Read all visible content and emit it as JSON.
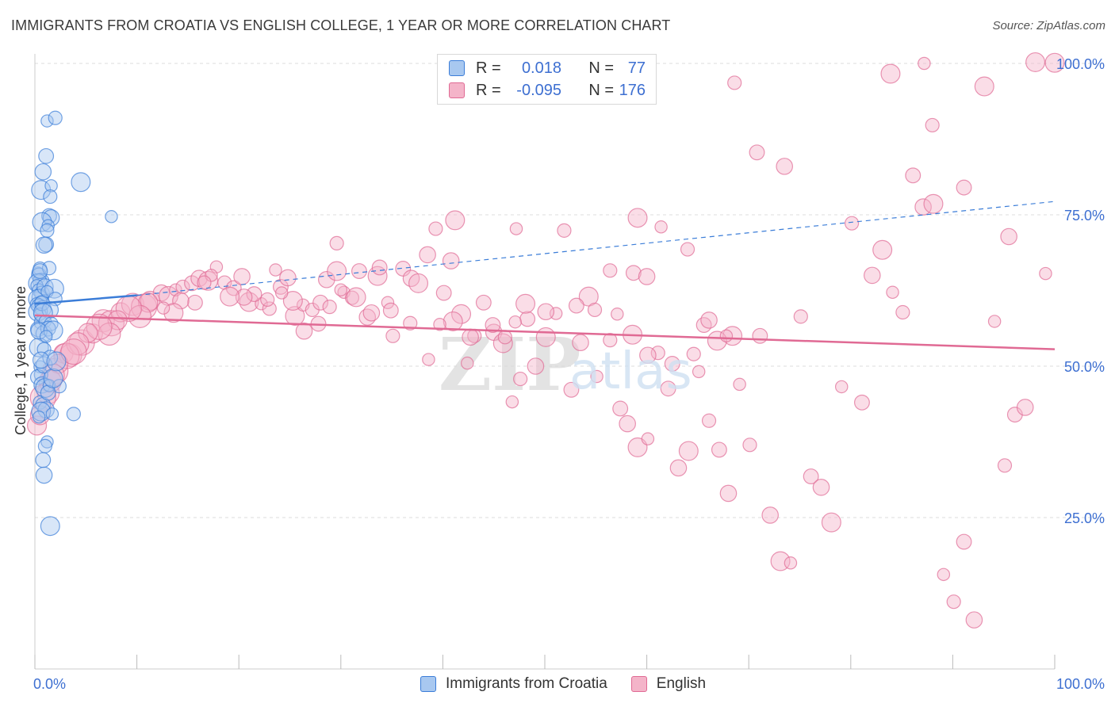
{
  "title": "IMMIGRANTS FROM CROATIA VS ENGLISH COLLEGE, 1 YEAR OR MORE CORRELATION CHART",
  "source": "Source: ZipAtlas.com",
  "watermark": "ZIPatlas",
  "colors": {
    "blue": "#3b7dd8",
    "blue_fill": "#a8c8f0",
    "pink": "#e06a94",
    "pink_fill": "#f4b4c9",
    "axis_text": "#3d6fd1",
    "grid": "#dddddd"
  },
  "legend_top": [
    {
      "series": "blue",
      "r_label": "R =",
      "r_value": "0.018",
      "n_label": "N =",
      "n_value": "77"
    },
    {
      "series": "pink",
      "r_label": "R =",
      "r_value": "-0.095",
      "n_label": "N =",
      "n_value": "176"
    }
  ],
  "legend_bottom": [
    {
      "series": "blue",
      "label": "Immigrants from Croatia"
    },
    {
      "series": "pink",
      "label": "English"
    }
  ],
  "chart_data": {
    "type": "scatter",
    "title": "IMMIGRANTS FROM CROATIA VS ENGLISH COLLEGE, 1 YEAR OR MORE CORRELATION CHART",
    "xlabel": "",
    "ylabel": "College, 1 year or more",
    "xlim": [
      0,
      100
    ],
    "ylim": [
      0,
      100
    ],
    "x_tick_labels": [
      "0.0%",
      "100.0%"
    ],
    "y_tick_labels": [
      "25.0%",
      "50.0%",
      "75.0%",
      "100.0%"
    ],
    "y_ticks": [
      25,
      50,
      75,
      100
    ],
    "series": [
      {
        "name": "Immigrants from Croatia",
        "color": "blue",
        "r": 0.018,
        "n": 77,
        "trend": {
          "x": [
            0,
            10
          ],
          "y": [
            60.3,
            61.7
          ],
          "dashed_to": [
            100,
            77.2
          ]
        },
        "points": [
          [
            0.3,
            65.4
          ],
          [
            0.5,
            66.1
          ],
          [
            0.4,
            65.0
          ],
          [
            0.6,
            64.0
          ],
          [
            0.3,
            63.7
          ],
          [
            0.2,
            63.3
          ],
          [
            0.4,
            62.5
          ],
          [
            0.7,
            62.0
          ],
          [
            0.5,
            61.4
          ],
          [
            0.3,
            61.1
          ],
          [
            0.6,
            60.6
          ],
          [
            0.2,
            60.2
          ],
          [
            0.4,
            59.9
          ],
          [
            0.8,
            59.5
          ],
          [
            0.3,
            59.0
          ],
          [
            0.5,
            58.6
          ],
          [
            0.6,
            57.2
          ],
          [
            0.3,
            56.1
          ],
          [
            0.9,
            55.4
          ],
          [
            0.4,
            53.1
          ],
          [
            0.5,
            49.9
          ],
          [
            0.6,
            48.6
          ],
          [
            0.3,
            48.2
          ],
          [
            0.7,
            46.9
          ],
          [
            1.0,
            46.4
          ],
          [
            1.4,
            46.8
          ],
          [
            0.5,
            44.0
          ],
          [
            0.8,
            43.6
          ],
          [
            1.1,
            42.8
          ],
          [
            0.6,
            42.5
          ],
          [
            1.7,
            42.1
          ],
          [
            2.4,
            46.7
          ],
          [
            1.3,
            45.6
          ],
          [
            0.9,
            50.2
          ],
          [
            1.8,
            48.0
          ],
          [
            1.2,
            37.5
          ],
          [
            1.0,
            36.8
          ],
          [
            0.8,
            34.5
          ],
          [
            0.9,
            32.0
          ],
          [
            1.5,
            23.6
          ],
          [
            1.2,
            90.5
          ],
          [
            2.0,
            91.0
          ],
          [
            1.1,
            84.7
          ],
          [
            0.8,
            82.1
          ],
          [
            0.6,
            79.1
          ],
          [
            1.6,
            79.8
          ],
          [
            1.5,
            78.0
          ],
          [
            1.4,
            74.8
          ],
          [
            1.6,
            74.5
          ],
          [
            0.7,
            73.8
          ],
          [
            1.3,
            73.2
          ],
          [
            1.2,
            72.4
          ],
          [
            1.1,
            70.1
          ],
          [
            0.9,
            70.0
          ],
          [
            4.5,
            80.4
          ],
          [
            7.5,
            74.7
          ],
          [
            1.4,
            66.2
          ],
          [
            0.5,
            65.7
          ],
          [
            1.0,
            63.1
          ],
          [
            1.9,
            62.8
          ],
          [
            1.2,
            62.3
          ],
          [
            2.0,
            61.1
          ],
          [
            0.7,
            60.4
          ],
          [
            1.5,
            59.3
          ],
          [
            0.8,
            58.8
          ],
          [
            1.0,
            57.4
          ],
          [
            1.6,
            57.0
          ],
          [
            1.3,
            56.2
          ],
          [
            0.4,
            55.8
          ],
          [
            1.8,
            55.9
          ],
          [
            1.1,
            54.9
          ],
          [
            0.9,
            52.8
          ],
          [
            1.5,
            51.4
          ],
          [
            0.6,
            51.0
          ],
          [
            2.1,
            50.8
          ],
          [
            0.4,
            41.6
          ],
          [
            3.8,
            42.1
          ]
        ]
      },
      {
        "name": "English",
        "color": "pink",
        "r": -0.095,
        "n": 176,
        "trend": {
          "x": [
            0,
            100
          ],
          "y": [
            58.4,
            52.8
          ]
        },
        "points": [
          [
            0.2,
            40.2
          ],
          [
            1.3,
            45.6
          ],
          [
            2.0,
            49.2
          ],
          [
            2.8,
            52.1
          ],
          [
            3.5,
            51.8
          ],
          [
            4.6,
            53.9
          ],
          [
            5.7,
            55.4
          ],
          [
            6.7,
            57.5
          ],
          [
            7.5,
            57.1
          ],
          [
            8.4,
            58.9
          ],
          [
            9.6,
            60.2
          ],
          [
            10.7,
            59.8
          ],
          [
            11.3,
            60.8
          ],
          [
            12.4,
            62.1
          ],
          [
            13.1,
            61.6
          ],
          [
            13.8,
            62.6
          ],
          [
            14.5,
            63.1
          ],
          [
            15.4,
            63.7
          ],
          [
            16.1,
            64.5
          ],
          [
            17.0,
            64.1
          ],
          [
            17.8,
            66.4
          ],
          [
            18.6,
            63.8
          ],
          [
            19.5,
            62.9
          ],
          [
            20.3,
            64.8
          ],
          [
            21.0,
            60.6
          ],
          [
            22.2,
            60.3
          ],
          [
            23.0,
            59.5
          ],
          [
            24.1,
            63.1
          ],
          [
            24.8,
            64.6
          ],
          [
            25.5,
            58.3
          ],
          [
            26.3,
            60.1
          ],
          [
            27.2,
            59.3
          ],
          [
            28.0,
            60.5
          ],
          [
            28.6,
            64.3
          ],
          [
            29.6,
            65.7
          ],
          [
            30.3,
            62.2
          ],
          [
            31.1,
            61.3
          ],
          [
            31.8,
            65.7
          ],
          [
            32.6,
            58.1
          ],
          [
            33.6,
            64.9
          ],
          [
            34.6,
            60.5
          ],
          [
            35.1,
            55.0
          ],
          [
            36.1,
            66.1
          ],
          [
            36.9,
            64.5
          ],
          [
            37.6,
            63.7
          ],
          [
            38.6,
            51.1
          ],
          [
            39.3,
            72.7
          ],
          [
            40.1,
            62.1
          ],
          [
            40.8,
            67.4
          ],
          [
            41.8,
            58.6
          ],
          [
            42.4,
            50.5
          ],
          [
            43.1,
            55.0
          ],
          [
            44.0,
            60.5
          ],
          [
            45.0,
            55.6
          ],
          [
            45.9,
            53.8
          ],
          [
            46.8,
            44.1
          ],
          [
            47.6,
            47.9
          ],
          [
            48.3,
            57.8
          ],
          [
            49.1,
            50.0
          ],
          [
            50.1,
            54.8
          ],
          [
            51.1,
            58.7
          ],
          [
            51.9,
            72.4
          ],
          [
            52.6,
            46.1
          ],
          [
            53.5,
            53.9
          ],
          [
            54.3,
            61.5
          ],
          [
            55.1,
            48.3
          ],
          [
            56.4,
            54.3
          ],
          [
            57.4,
            43.0
          ],
          [
            58.1,
            40.5
          ],
          [
            59.1,
            36.6
          ],
          [
            60.1,
            38.0
          ],
          [
            61.1,
            52.2
          ],
          [
            62.1,
            46.3
          ],
          [
            63.1,
            33.2
          ],
          [
            64.1,
            36.0
          ],
          [
            65.1,
            49.1
          ],
          [
            66.1,
            41.0
          ],
          [
            67.1,
            36.2
          ],
          [
            68.0,
            29.0
          ],
          [
            68.4,
            55.0
          ],
          [
            69.1,
            47.0
          ],
          [
            70.1,
            37.0
          ],
          [
            71.1,
            55.0
          ],
          [
            72.1,
            25.4
          ],
          [
            73.1,
            17.8
          ],
          [
            74.1,
            17.5
          ],
          [
            75.1,
            58.2
          ],
          [
            76.1,
            31.8
          ],
          [
            77.1,
            30.0
          ],
          [
            78.1,
            24.2
          ],
          [
            79.1,
            46.6
          ],
          [
            80.1,
            73.6
          ],
          [
            81.1,
            44.0
          ],
          [
            82.1,
            65.0
          ],
          [
            83.1,
            69.2
          ],
          [
            84.1,
            62.2
          ],
          [
            85.1,
            58.9
          ],
          [
            86.1,
            81.5
          ],
          [
            87.1,
            76.3
          ],
          [
            88.1,
            76.8
          ],
          [
            89.1,
            15.6
          ],
          [
            90.1,
            11.1
          ],
          [
            91.1,
            21.0
          ],
          [
            92.1,
            8.1
          ],
          [
            93.1,
            96.2
          ],
          [
            94.1,
            57.4
          ],
          [
            95.1,
            33.6
          ],
          [
            96.1,
            42.0
          ],
          [
            97.1,
            43.2
          ],
          [
            98.1,
            100.2
          ],
          [
            99.1,
            65.3
          ],
          [
            68.6,
            96.8
          ],
          [
            70.8,
            85.3
          ],
          [
            73.5,
            83.0
          ],
          [
            83.9,
            98.3
          ],
          [
            87.2,
            100.0
          ],
          [
            88.0,
            89.8
          ],
          [
            91.1,
            79.5
          ],
          [
            95.5,
            71.4
          ],
          [
            100.0,
            100.1
          ],
          [
            23.6,
            65.9
          ],
          [
            29.6,
            70.3
          ],
          [
            33.8,
            66.3
          ],
          [
            38.5,
            68.4
          ],
          [
            41.2,
            74.1
          ],
          [
            47.2,
            72.7
          ],
          [
            56.4,
            65.8
          ],
          [
            58.7,
            65.4
          ],
          [
            60.0,
            64.8
          ],
          [
            59.1,
            74.5
          ],
          [
            61.4,
            73.0
          ],
          [
            64.0,
            69.3
          ],
          [
            65.6,
            56.8
          ],
          [
            66.1,
            57.6
          ],
          [
            66.9,
            54.2
          ],
          [
            67.8,
            55.0
          ],
          [
            64.6,
            52.0
          ],
          [
            62.5,
            50.4
          ],
          [
            60.1,
            51.8
          ],
          [
            58.6,
            55.2
          ],
          [
            57.1,
            58.6
          ],
          [
            54.9,
            59.3
          ],
          [
            53.1,
            60.0
          ],
          [
            50.1,
            59.0
          ],
          [
            48.1,
            60.3
          ],
          [
            47.1,
            57.3
          ],
          [
            46.1,
            54.8
          ],
          [
            44.9,
            56.8
          ],
          [
            42.7,
            54.8
          ],
          [
            41.0,
            57.4
          ],
          [
            39.7,
            56.9
          ],
          [
            36.8,
            57.1
          ],
          [
            34.9,
            59.2
          ],
          [
            33.0,
            58.8
          ],
          [
            31.5,
            61.4
          ],
          [
            30.0,
            62.6
          ],
          [
            28.9,
            59.8
          ],
          [
            27.8,
            57.0
          ],
          [
            26.4,
            55.8
          ],
          [
            25.3,
            60.8
          ],
          [
            24.2,
            62.1
          ],
          [
            22.8,
            61.0
          ],
          [
            21.5,
            61.9
          ],
          [
            20.5,
            61.4
          ],
          [
            19.1,
            61.5
          ],
          [
            17.3,
            65.0
          ],
          [
            16.6,
            63.8
          ],
          [
            15.7,
            60.5
          ],
          [
            14.3,
            60.8
          ],
          [
            13.6,
            58.8
          ],
          [
            12.6,
            59.6
          ],
          [
            11.1,
            60.5
          ],
          [
            10.3,
            58.2
          ],
          [
            9.2,
            59.5
          ],
          [
            8.1,
            57.6
          ],
          [
            7.3,
            55.3
          ],
          [
            6.3,
            56.5
          ],
          [
            5.2,
            55.5
          ],
          [
            4.2,
            53.7
          ],
          [
            3.1,
            51.7
          ],
          [
            2.3,
            50.4
          ],
          [
            1.5,
            47.5
          ],
          [
            0.8,
            44.8
          ],
          [
            0.5,
            41.9
          ],
          [
            1.8,
            48.5
          ],
          [
            3.8,
            52.4
          ]
        ]
      }
    ]
  }
}
